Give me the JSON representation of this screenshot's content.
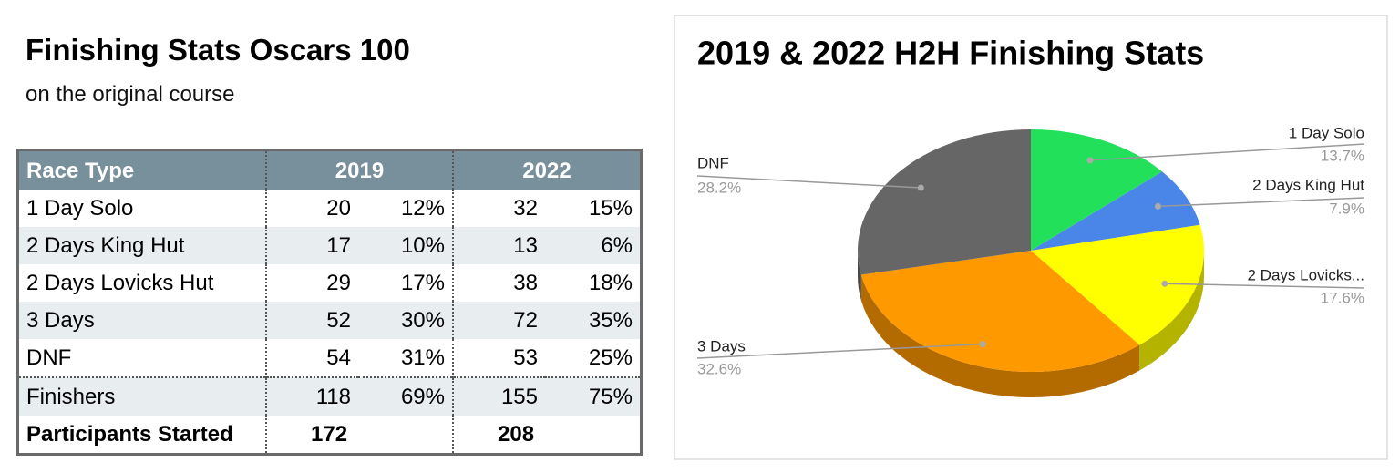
{
  "header": {
    "title": "Finishing Stats Oscars 100",
    "subtitle": "on the original course"
  },
  "table": {
    "columns": [
      "Race Type",
      "2019",
      "2022"
    ],
    "rows": [
      [
        "1 Day Solo",
        "20",
        "12%",
        "32",
        "15%"
      ],
      [
        "2 Days King Hut",
        "17",
        "10%",
        "13",
        "6%"
      ],
      [
        "2 Days Lovicks Hut",
        "29",
        "17%",
        "38",
        "18%"
      ],
      [
        "3 Days",
        "52",
        "30%",
        "72",
        "35%"
      ],
      [
        "DNF",
        "54",
        "31%",
        "53",
        "25%"
      ],
      [
        "Finishers",
        "118",
        "69%",
        "155",
        "75%"
      ],
      [
        "Participants Started",
        "172",
        "208"
      ]
    ]
  },
  "chart_data": {
    "type": "pie",
    "title": "2019 & 2022 H2H Finishing Stats",
    "categories": [
      "1 Day Solo",
      "2 Days King Hut",
      "2 Days Lovicks...",
      "3 Days",
      "DNF"
    ],
    "values": [
      13.7,
      7.9,
      17.6,
      32.6,
      28.2
    ],
    "value_labels": [
      "13.7%",
      "7.9%",
      "17.6%",
      "32.6%",
      "28.2%"
    ],
    "colors": [
      "#22e05a",
      "#4a86e8",
      "#ffff00",
      "#ff9900",
      "#666666"
    ],
    "three_d": true
  }
}
